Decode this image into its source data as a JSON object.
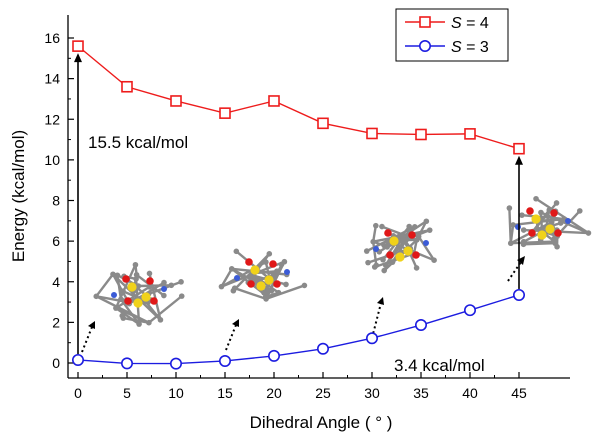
{
  "chart_data": {
    "type": "line",
    "xlabel": "Dihedral Angle ( ° )",
    "ylabel": "Energy (kcal/mol)",
    "xlim": [
      -1,
      46
    ],
    "ylim": [
      -0.6,
      17.3
    ],
    "x": [
      0,
      5,
      10,
      15,
      20,
      25,
      30,
      35,
      40,
      45
    ],
    "x_ticks": [
      "0",
      "5",
      "10",
      "15",
      "20",
      "25",
      "30",
      "35",
      "40",
      "45"
    ],
    "y_ticks": [
      "0",
      "2",
      "4",
      "6",
      "8",
      "10",
      "12",
      "14",
      "16"
    ],
    "series": [
      {
        "name": "S = 4",
        "name_symbol": "S",
        "name_rest": " = 4",
        "color": "#ee1c1c",
        "marker": "square",
        "values": [
          15.6,
          13.6,
          12.9,
          12.3,
          12.9,
          11.8,
          11.3,
          11.25,
          11.28,
          10.55
        ]
      },
      {
        "name": "S = 3",
        "name_symbol": "S",
        "name_rest": " = 3",
        "color": "#1c1ce0",
        "marker": "circle",
        "values": [
          0.15,
          -0.02,
          -0.03,
          0.1,
          0.35,
          0.7,
          1.22,
          1.87,
          2.6,
          3.35
        ]
      }
    ],
    "legend_position": "top-right",
    "annotations": [
      {
        "text": "15.5 kcal/mol",
        "x": 0
      },
      {
        "text": "3.4 kcal/mol",
        "x": 45
      }
    ],
    "grid": false
  },
  "colors": {
    "molecule_carbon": "#8a8a8a",
    "molecule_nitrogen": "#3b5bd6",
    "molecule_oxygen": "#e01818",
    "molecule_sulfur": "#f0d21a"
  }
}
